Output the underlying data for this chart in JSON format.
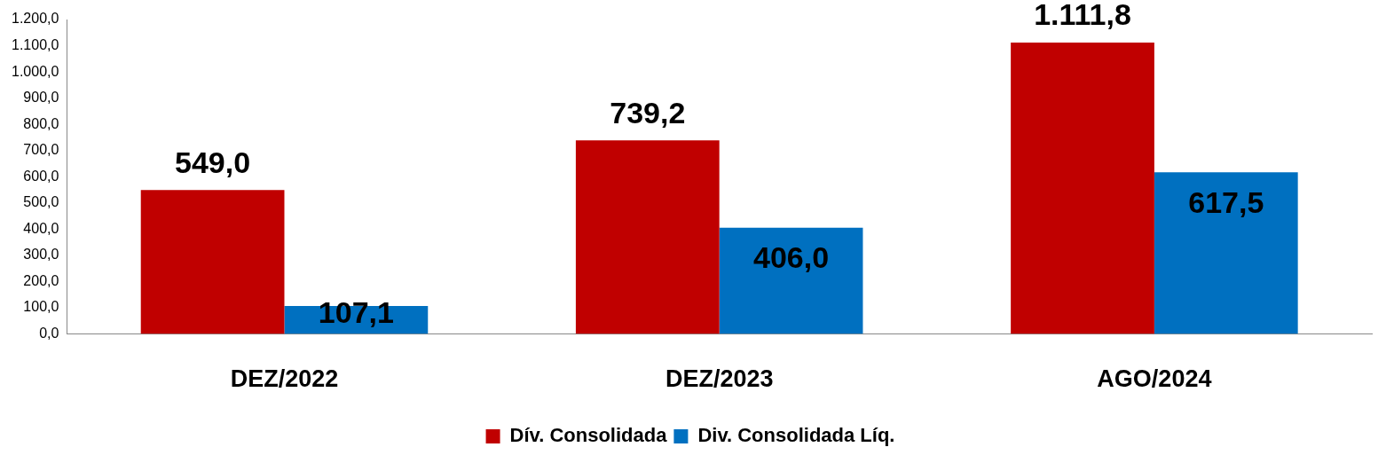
{
  "chart_data": {
    "type": "bar",
    "categories": [
      "DEZ/2022",
      "DEZ/2023",
      "AGO/2024"
    ],
    "series": [
      {
        "name": "Dív. Consolidada",
        "color": "#c00000",
        "values": [
          549.0,
          739.2,
          1111.8
        ],
        "value_labels": [
          "549,0",
          "739,2",
          "1.111,8"
        ]
      },
      {
        "name": "Div. Consolidada Líq.",
        "color": "#0070c0",
        "values": [
          107.1,
          406.0,
          617.5
        ],
        "value_labels": [
          "107,1",
          "406,0",
          "617,5"
        ]
      }
    ],
    "ylim": [
      0,
      1200
    ],
    "yticks": [
      {
        "value": 0,
        "label": "0,0"
      },
      {
        "value": 100,
        "label": "100,0"
      },
      {
        "value": 200,
        "label": "200,0"
      },
      {
        "value": 300,
        "label": "300,0"
      },
      {
        "value": 400,
        "label": "400,0"
      },
      {
        "value": 500,
        "label": "500,0"
      },
      {
        "value": 600,
        "label": "600,0"
      },
      {
        "value": 700,
        "label": "700,0"
      },
      {
        "value": 800,
        "label": "800,0"
      },
      {
        "value": 900,
        "label": "900,0"
      },
      {
        "value": 1000,
        "label": "1.000,0"
      },
      {
        "value": 1100,
        "label": "1.100,0"
      },
      {
        "value": 1200,
        "label": "1.200,0"
      }
    ],
    "grid": false,
    "legend": "bottom"
  }
}
